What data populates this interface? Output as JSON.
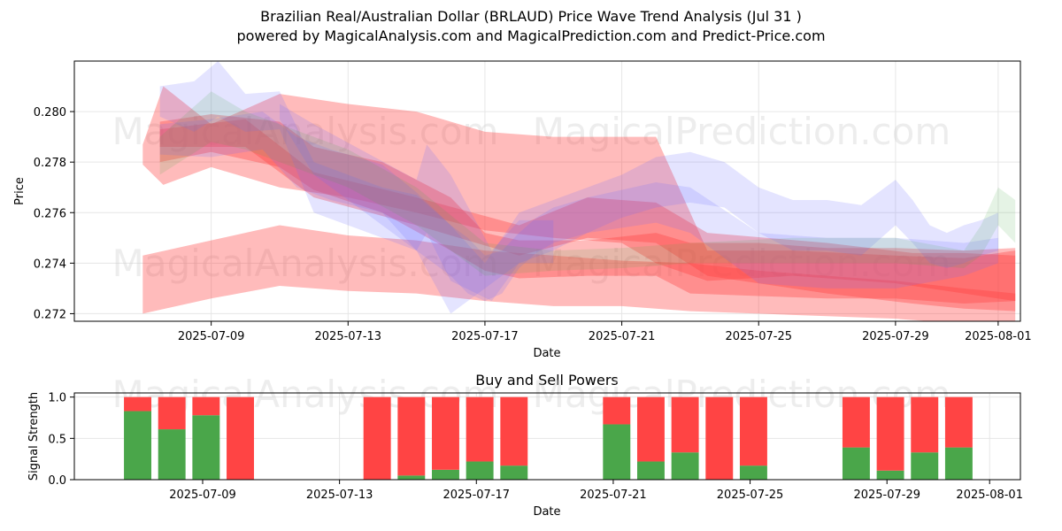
{
  "header": {
    "title": "Brazilian Real/Australian Dollar (BRLAUD) Price Wave Trend Analysis (Jul 31 )",
    "subtitle": "powered by MagicalAnalysis.com and MagicalPrediction.com and Predict-Price.com"
  },
  "watermarks": [
    "MagicalAnalysis.com",
    "MagicalPrediction.com"
  ],
  "colors": {
    "red": "#ff3b3b",
    "blue": "#6b6bff",
    "green": "#4aa84a",
    "sell": "#ff4444",
    "buy": "#4aa64a"
  },
  "chart_data": [
    {
      "type": "area",
      "title": "",
      "xlabel": "Date",
      "ylabel": "Price",
      "xlim": [
        "2025-07-05",
        "2025-08-01"
      ],
      "ylim": [
        0.2717,
        0.282
      ],
      "x_ticks": [
        "2025-07-09",
        "2025-07-13",
        "2025-07-17",
        "2025-07-21",
        "2025-07-25",
        "2025-07-29",
        "2025-08-01"
      ],
      "y_ticks": [
        "0.272",
        "0.274",
        "0.276",
        "0.278",
        "0.280"
      ],
      "grid": true,
      "series": [
        {
          "name": "red-upper-band",
          "color": "red",
          "x": [
            6.0,
            6.6,
            8.0,
            10.0,
            12.0,
            14.0,
            16.0,
            18.0,
            20.0,
            21.0,
            22.5,
            25.0,
            28.0,
            30.0,
            31.5
          ],
          "upper": [
            0.2787,
            0.281,
            0.2795,
            0.2807,
            0.2803,
            0.28,
            0.2792,
            0.279,
            0.279,
            0.279,
            0.2745,
            0.2745,
            0.2743,
            0.2742,
            0.2745
          ],
          "lower": [
            0.2779,
            0.2771,
            0.2778,
            0.277,
            0.2766,
            0.276,
            0.2753,
            0.275,
            0.2748,
            0.274,
            0.2733,
            0.2735,
            0.2732,
            0.2728,
            0.2725
          ]
        },
        {
          "name": "red-lower-band",
          "color": "red",
          "x": [
            6.0,
            8.0,
            10.0,
            12.0,
            14.0,
            16.0,
            18.0,
            20.0,
            22.0,
            24.0,
            26.0,
            28.0,
            30.0,
            31.5
          ],
          "upper": [
            0.2743,
            0.2749,
            0.2755,
            0.2751,
            0.2749,
            0.2745,
            0.2743,
            0.2741,
            0.274,
            0.2737,
            0.2735,
            0.2733,
            0.273,
            0.2728
          ],
          "lower": [
            0.272,
            0.2726,
            0.2731,
            0.2729,
            0.2728,
            0.2725,
            0.2723,
            0.2723,
            0.2721,
            0.272,
            0.2719,
            0.2718,
            0.2716,
            0.2715
          ]
        },
        {
          "name": "red-main-trend",
          "color": "red",
          "x": [
            6.5,
            8.0,
            10.0,
            11.0,
            13.0,
            15.0,
            16.0,
            17.0,
            19.0,
            21.0,
            22.0,
            24.0,
            26.0,
            28.0,
            30.0,
            31.5
          ],
          "upper": [
            0.2796,
            0.2799,
            0.2796,
            0.2786,
            0.278,
            0.2766,
            0.2752,
            0.2749,
            0.2749,
            0.2752,
            0.2748,
            0.2748,
            0.2746,
            0.2746,
            0.2745,
            0.2746
          ],
          "lower": [
            0.278,
            0.2784,
            0.2778,
            0.2769,
            0.276,
            0.2745,
            0.2737,
            0.2734,
            0.2735,
            0.2735,
            0.2728,
            0.2727,
            0.2726,
            0.2726,
            0.2724,
            0.2725
          ]
        },
        {
          "name": "red-mid-trend",
          "color": "red",
          "x": [
            6.5,
            9.0,
            11.0,
            14.0,
            17.0,
            19.0,
            21.0,
            22.5,
            26.0,
            28.5,
            30.0,
            31.5
          ],
          "upper": [
            0.2793,
            0.2797,
            0.2776,
            0.2766,
            0.2755,
            0.2766,
            0.2764,
            0.2752,
            0.2748,
            0.2744,
            0.2744,
            0.2743
          ],
          "lower": [
            0.2786,
            0.2786,
            0.2766,
            0.2755,
            0.2743,
            0.275,
            0.2748,
            0.2735,
            0.2728,
            0.2724,
            0.2722,
            0.2721
          ]
        },
        {
          "name": "blue-upper-trend",
          "color": "blue",
          "x": [
            6.5,
            7.5,
            8.2,
            9.0,
            10.0,
            11.0,
            12.0,
            13.0,
            14.0,
            15.0,
            16.0,
            17.0,
            18.0,
            19.0,
            20.0,
            21.0,
            22.0,
            23.0,
            24.0,
            25.0,
            26.0,
            27.0,
            28.0,
            28.5,
            29.0,
            29.5,
            30.0,
            30.5,
            31.0
          ],
          "upper": [
            0.281,
            0.2812,
            0.282,
            0.2807,
            0.2808,
            0.278,
            0.2775,
            0.277,
            0.2767,
            0.2755,
            0.274,
            0.276,
            0.2765,
            0.277,
            0.2775,
            0.2782,
            0.2784,
            0.278,
            0.277,
            0.2765,
            0.2765,
            0.2763,
            0.2773,
            0.2765,
            0.2755,
            0.2752,
            0.2755,
            0.2757,
            0.276
          ],
          "lower": [
            0.2798,
            0.2792,
            0.2798,
            0.2792,
            0.2793,
            0.276,
            0.2755,
            0.275,
            0.2745,
            0.272,
            0.273,
            0.274,
            0.2745,
            0.2752,
            0.2758,
            0.2762,
            0.2764,
            0.2762,
            0.2752,
            0.2745,
            0.2745,
            0.2743,
            0.2755,
            0.2748,
            0.274,
            0.2738,
            0.274,
            0.2743,
            0.2745
          ]
        },
        {
          "name": "blue-lower-trend",
          "color": "blue",
          "x": [
            6.5,
            8.0,
            9.5,
            10.5,
            11.5,
            13.0,
            14.0,
            15.0,
            15.5,
            16.0,
            16.5,
            17.0,
            17.5,
            18.0,
            19.0,
            21.0,
            22.0,
            24.0,
            26.0,
            28.0,
            30.0,
            31.0
          ],
          "upper": [
            0.2795,
            0.2797,
            0.28,
            0.279,
            0.2785,
            0.2779,
            0.2768,
            0.2755,
            0.275,
            0.2743,
            0.2745,
            0.2752,
            0.2758,
            0.2762,
            0.2766,
            0.2772,
            0.277,
            0.2752,
            0.275,
            0.275,
            0.2748,
            0.275
          ],
          "lower": [
            0.2783,
            0.2782,
            0.2785,
            0.277,
            0.2765,
            0.276,
            0.2745,
            0.2735,
            0.2728,
            0.2725,
            0.2728,
            0.2738,
            0.2744,
            0.2748,
            0.2752,
            0.2756,
            0.2752,
            0.2732,
            0.273,
            0.273,
            0.2735,
            0.274
          ]
        },
        {
          "name": "blue-sharp-wave",
          "color": "blue",
          "x": [
            10.0,
            11.0,
            14.0,
            14.3,
            15.0,
            16.2,
            17.0,
            18.0
          ],
          "upper": [
            0.2803,
            0.2795,
            0.2773,
            0.2787,
            0.2775,
            0.2745,
            0.2757,
            0.2757
          ],
          "lower": [
            0.2797,
            0.2775,
            0.2745,
            0.2752,
            0.2733,
            0.2725,
            0.274,
            0.274
          ]
        },
        {
          "name": "green-trend",
          "color": "green",
          "x": [
            6.5,
            8.0,
            9.0,
            10.0,
            12.0,
            14.0,
            16.0,
            18.0,
            20.0,
            22.0,
            25.0,
            28.0,
            30.0,
            30.5,
            31.0,
            31.5
          ],
          "upper": [
            0.279,
            0.2808,
            0.28,
            0.2795,
            0.2785,
            0.277,
            0.2748,
            0.2745,
            0.2746,
            0.2748,
            0.275,
            0.275,
            0.2745,
            0.2755,
            0.277,
            0.2765
          ],
          "lower": [
            0.2775,
            0.2788,
            0.2785,
            0.278,
            0.277,
            0.2755,
            0.2735,
            0.2737,
            0.2738,
            0.274,
            0.274,
            0.274,
            0.2738,
            0.2743,
            0.2755,
            0.2748
          ]
        }
      ]
    },
    {
      "type": "bar",
      "title": "Buy and Sell Powers",
      "xlabel": "Date",
      "ylabel": "Signal Strength",
      "xlim": [
        "2025-07-05",
        "2025-08-01"
      ],
      "ylim": [
        0,
        1.05
      ],
      "x_ticks": [
        "2025-07-09",
        "2025-07-13",
        "2025-07-17",
        "2025-07-21",
        "2025-07-25",
        "2025-07-29",
        "2025-08-01"
      ],
      "y_ticks": [
        "0.0",
        "0.5",
        "1.0"
      ],
      "grid": true,
      "categories": [
        "2025-07-07",
        "2025-07-08",
        "2025-07-09",
        "2025-07-10",
        "2025-07-14",
        "2025-07-15",
        "2025-07-16",
        "2025-07-17",
        "2025-07-18",
        "2025-07-21",
        "2025-07-22",
        "2025-07-23",
        "2025-07-24",
        "2025-07-25",
        "2025-07-28",
        "2025-07-29",
        "2025-07-30",
        "2025-07-31"
      ],
      "series": [
        {
          "name": "Buy",
          "color": "buy",
          "values": [
            0.83,
            0.61,
            0.78,
            0.0,
            0.0,
            0.05,
            0.12,
            0.22,
            0.17,
            0.67,
            0.22,
            0.33,
            0.0,
            0.17,
            0.39,
            0.11,
            0.33,
            0.39
          ]
        },
        {
          "name": "Sell",
          "color": "sell",
          "values": [
            0.17,
            0.39,
            0.22,
            1.0,
            1.0,
            0.95,
            0.88,
            0.78,
            0.83,
            0.33,
            0.78,
            0.67,
            1.0,
            0.83,
            0.61,
            0.89,
            0.67,
            0.61
          ]
        }
      ]
    }
  ]
}
